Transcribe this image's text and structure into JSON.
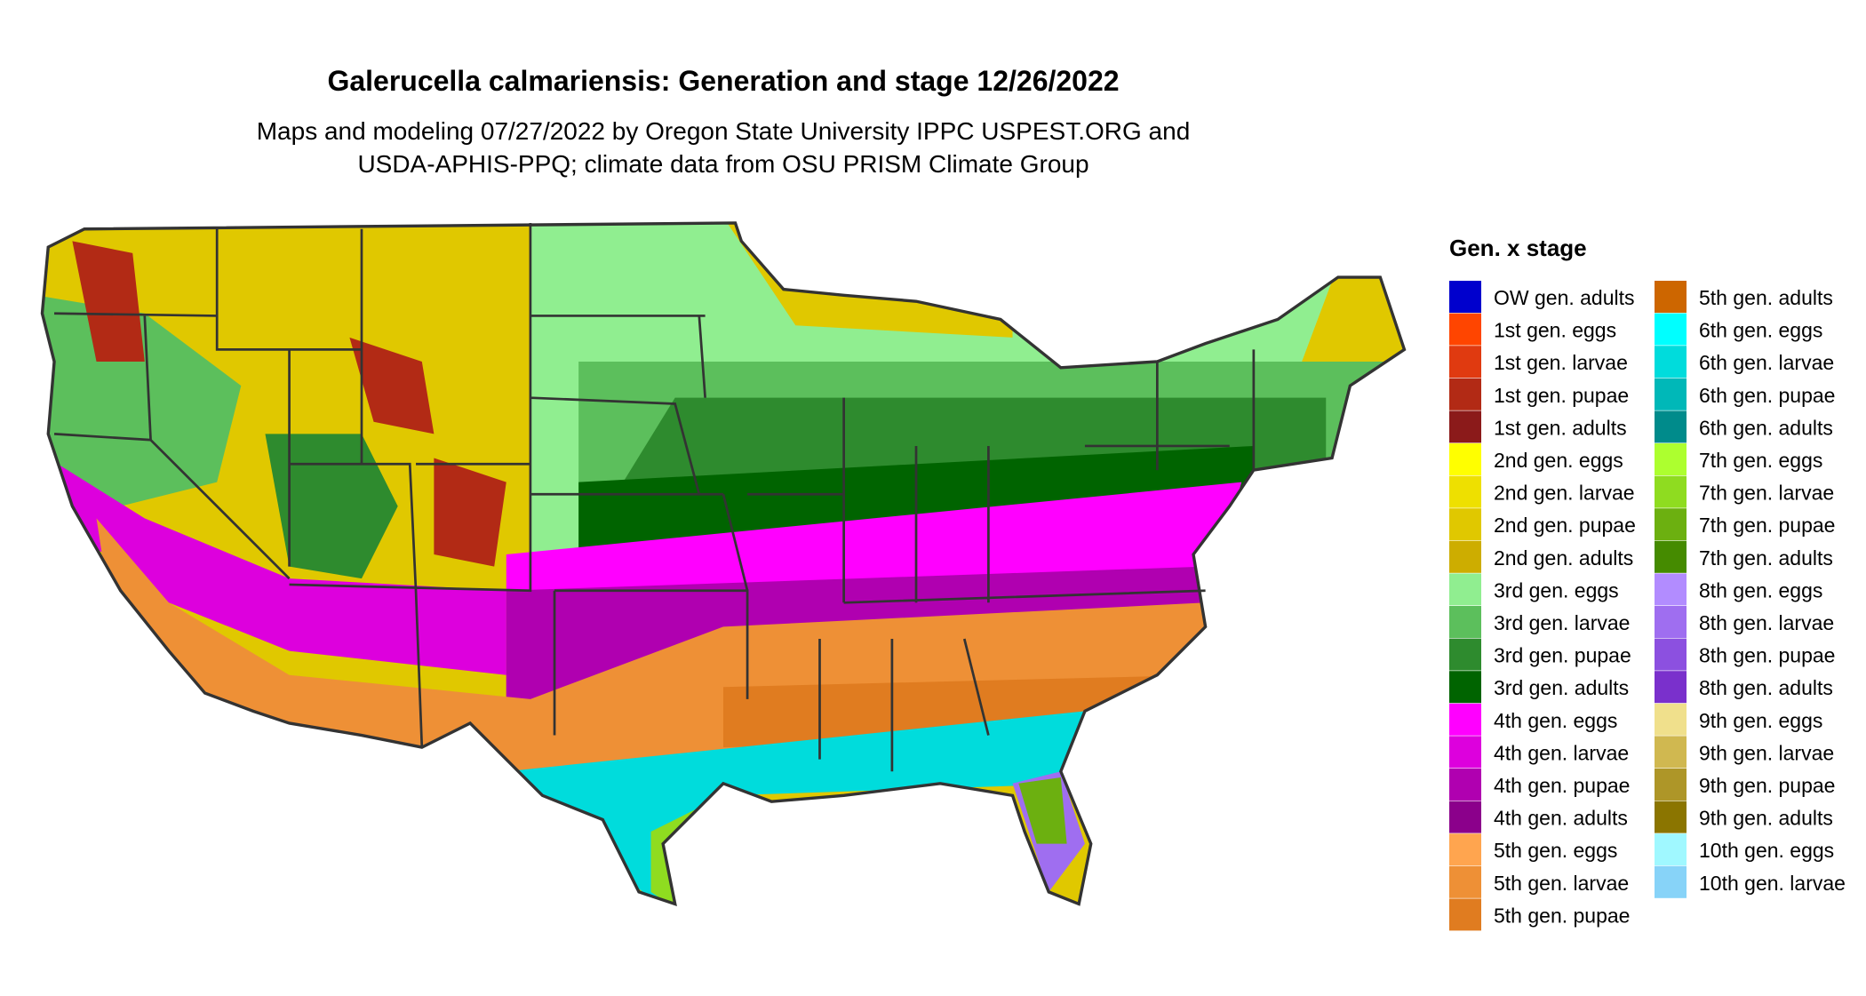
{
  "title": "Galerucella calmariensis: Generation and stage 12/26/2022",
  "subtitle_lines": [
    "Maps and modeling 07/27/2022 by Oregon State University IPPC USPEST.ORG and",
    "USDA-APHIS-PPQ; climate data from OSU PRISM Climate Group"
  ],
  "legend": {
    "title": "Gen. x stage",
    "items": [
      {
        "label": "OW gen. adults",
        "color": "#0000cd"
      },
      {
        "label": "1st gen. eggs",
        "color": "#ff4500"
      },
      {
        "label": "1st gen. larvae",
        "color": "#e03a10"
      },
      {
        "label": "1st gen. pupae",
        "color": "#b22a15"
      },
      {
        "label": "1st gen. adults",
        "color": "#8b1a1a"
      },
      {
        "label": "2nd gen. eggs",
        "color": "#ffff00"
      },
      {
        "label": "2nd gen. larvae",
        "color": "#eee000"
      },
      {
        "label": "2nd gen. pupae",
        "color": "#e0c800"
      },
      {
        "label": "2nd gen. adults",
        "color": "#cdad00"
      },
      {
        "label": "3rd gen. eggs",
        "color": "#90ee90"
      },
      {
        "label": "3rd gen. larvae",
        "color": "#5cbf5c"
      },
      {
        "label": "3rd gen. pupae",
        "color": "#2e8b2e"
      },
      {
        "label": "3rd gen. adults",
        "color": "#006400"
      },
      {
        "label": "4th gen. eggs",
        "color": "#ff00ff"
      },
      {
        "label": "4th gen. larvae",
        "color": "#dd00dd"
      },
      {
        "label": "4th gen. pupae",
        "color": "#b000b0"
      },
      {
        "label": "4th gen. adults",
        "color": "#8b008b"
      },
      {
        "label": "5th gen. eggs",
        "color": "#ffa54f"
      },
      {
        "label": "5th gen. larvae",
        "color": "#ee9036"
      },
      {
        "label": "5th gen. pupae",
        "color": "#e07c20"
      },
      {
        "label": "5th gen. adults",
        "color": "#cd6600"
      },
      {
        "label": "6th gen. eggs",
        "color": "#00ffff"
      },
      {
        "label": "6th gen. larvae",
        "color": "#00dcdc"
      },
      {
        "label": "6th gen. pupae",
        "color": "#00b8b8"
      },
      {
        "label": "6th gen. adults",
        "color": "#008b8b"
      },
      {
        "label": "7th gen. eggs",
        "color": "#adff2f"
      },
      {
        "label": "7th gen. larvae",
        "color": "#8fdc20"
      },
      {
        "label": "7th gen. pupae",
        "color": "#6cb010"
      },
      {
        "label": "7th gen. adults",
        "color": "#458b00"
      },
      {
        "label": "8th gen. eggs",
        "color": "#b28cff"
      },
      {
        "label": "8th gen. larvae",
        "color": "#9f6ef0"
      },
      {
        "label": "8th gen. pupae",
        "color": "#8c50e0"
      },
      {
        "label": "8th gen. adults",
        "color": "#7a30cc"
      },
      {
        "label": "9th gen. eggs",
        "color": "#f0e08c"
      },
      {
        "label": "9th gen. larvae",
        "color": "#d0b850"
      },
      {
        "label": "9th gen. pupae",
        "color": "#ae9628"
      },
      {
        "label": "9th gen. adults",
        "color": "#8b7500"
      },
      {
        "label": "10th gen. eggs",
        "color": "#a0f8ff"
      },
      {
        "label": "10th gen. larvae",
        "color": "#87d3f8"
      }
    ]
  }
}
